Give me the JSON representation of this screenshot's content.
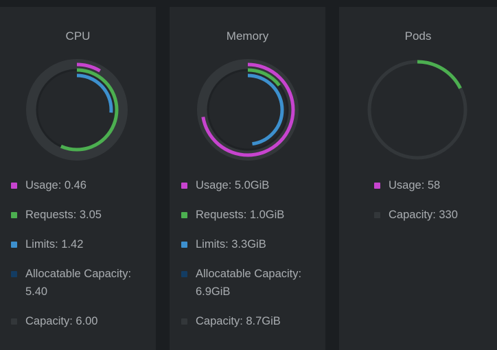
{
  "colors": {
    "usage": "#c744cf",
    "requests": "#4caf50",
    "limits": "#3d90ce",
    "allocatable": "#133c62",
    "capacity": "#33373a"
  },
  "cards": [
    {
      "title": "CPU",
      "rings": {
        "usage": 0.0852,
        "requests": 0.5648,
        "limits": 0.263,
        "allocatable": 1.0,
        "capacity": 1.0
      },
      "legend": [
        {
          "series": "usage",
          "label": "Usage: 0.46"
        },
        {
          "series": "requests",
          "label": "Requests: 3.05"
        },
        {
          "series": "limits",
          "label": "Limits: 1.42"
        },
        {
          "series": "allocatable",
          "label": "Allocatable Capacity: 5.40"
        },
        {
          "series": "capacity",
          "label": "Capacity: 6.00"
        }
      ]
    },
    {
      "title": "Memory",
      "rings": {
        "usage": 0.7246,
        "requests": 0.1449,
        "limits": 0.4783,
        "allocatable": 1.0,
        "capacity": 1.0
      },
      "legend": [
        {
          "series": "usage",
          "label": "Usage: 5.0GiB"
        },
        {
          "series": "requests",
          "label": "Requests: 1.0GiB"
        },
        {
          "series": "limits",
          "label": "Limits: 3.3GiB"
        },
        {
          "series": "allocatable",
          "label": "Allocatable Capacity: 6.9GiB"
        },
        {
          "series": "capacity",
          "label": "Capacity: 8.7GiB"
        }
      ]
    },
    {
      "title": "Pods",
      "rings": {
        "usage": 0.1758,
        "capacity": 1.0
      },
      "legend": [
        {
          "series": "usage",
          "label": "Usage: 58"
        },
        {
          "series": "capacity",
          "label": "Capacity: 330"
        }
      ]
    }
  ]
}
